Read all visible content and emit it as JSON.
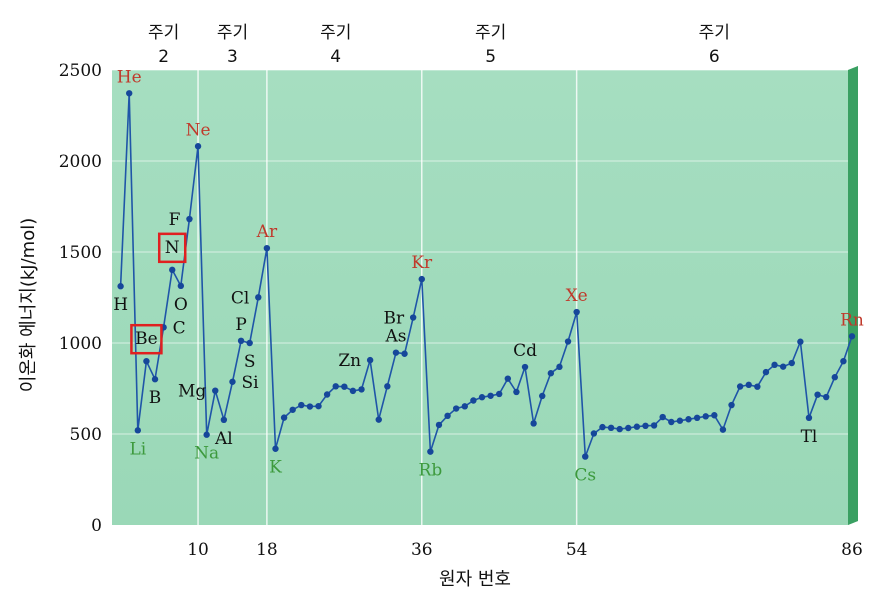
{
  "chart_data": {
    "type": "line",
    "xlabel": "원자 번호",
    "ylabel": "이온화 에너지(kJ/mol)",
    "xlim": [
      0,
      86
    ],
    "ylim": [
      0,
      2500
    ],
    "x_ticks": [
      10,
      18,
      36,
      54,
      86
    ],
    "y_ticks": [
      0,
      500,
      1000,
      1500,
      2000,
      2500
    ],
    "grid": true,
    "colors": {
      "background": "#9ad8b7",
      "line": "#1f55a8",
      "point": "#16479a",
      "noble_gas_label": "#c0392b",
      "alkali_label": "#3d9a3d",
      "other_label": "#111111",
      "highlight_box": "#e02020",
      "right_edge": "#3aa062"
    },
    "periods": [
      {
        "label": "주기",
        "number": "2",
        "x": 6
      },
      {
        "label": "주기",
        "number": "3",
        "x": 14
      },
      {
        "label": "주기",
        "number": "4",
        "x": 26
      },
      {
        "label": "주기",
        "number": "5",
        "x": 44
      },
      {
        "label": "주기",
        "number": "6",
        "x": 70
      }
    ],
    "series": [
      {
        "x": [
          1,
          2,
          3,
          4,
          5,
          6,
          7,
          8,
          9,
          10,
          11,
          12,
          13,
          14,
          15,
          16,
          17,
          18,
          19,
          20,
          21,
          22,
          23,
          24,
          25,
          26,
          27,
          28,
          29,
          30,
          31,
          32,
          33,
          34,
          35,
          36,
          37,
          38,
          39,
          40,
          41,
          42,
          43,
          44,
          45,
          46,
          47,
          48,
          49,
          50,
          51,
          52,
          53,
          54,
          55,
          56,
          57,
          58,
          59,
          60,
          61,
          62,
          63,
          64,
          65,
          66,
          67,
          68,
          69,
          70,
          71,
          72,
          73,
          74,
          75,
          76,
          77,
          78,
          79,
          80,
          81,
          82,
          83,
          84,
          85,
          86
        ],
        "values": [
          1312,
          2372,
          520,
          900,
          801,
          1086,
          1402,
          1314,
          1681,
          2081,
          496,
          738,
          578,
          787,
          1012,
          1000,
          1251,
          1521,
          419,
          590,
          633,
          659,
          651,
          653,
          717,
          762,
          760,
          737,
          745,
          906,
          579,
          762,
          947,
          941,
          1140,
          1351,
          403,
          550,
          600,
          640,
          652,
          684,
          702,
          710,
          720,
          804,
          731,
          868,
          558,
          709,
          834,
          869,
          1008,
          1170,
          376,
          503,
          538,
          534,
          527,
          533,
          540,
          545,
          547,
          593,
          566,
          573,
          581,
          589,
          597,
          603,
          524,
          659,
          761,
          770,
          760,
          840,
          880,
          870,
          890,
          1007,
          589,
          716,
          703,
          812,
          900,
          1037
        ]
      }
    ],
    "element_labels": [
      {
        "symbol": "H",
        "x": 1,
        "value": 1312,
        "group": "other",
        "pos": "below"
      },
      {
        "symbol": "He",
        "x": 2,
        "value": 2372,
        "group": "noble",
        "pos": "above"
      },
      {
        "symbol": "Li",
        "x": 3,
        "value": 520,
        "group": "alkali",
        "pos": "below"
      },
      {
        "symbol": "Be",
        "x": 4,
        "value": 900,
        "group": "other",
        "pos": "box-above"
      },
      {
        "symbol": "B",
        "x": 5,
        "value": 801,
        "group": "other",
        "pos": "below"
      },
      {
        "symbol": "C",
        "x": 6,
        "value": 1086,
        "group": "other",
        "pos": "right"
      },
      {
        "symbol": "N",
        "x": 7,
        "value": 1402,
        "group": "other",
        "pos": "box-above"
      },
      {
        "symbol": "O",
        "x": 8,
        "value": 1314,
        "group": "other",
        "pos": "below"
      },
      {
        "symbol": "F",
        "x": 9,
        "value": 1681,
        "group": "other",
        "pos": "left"
      },
      {
        "symbol": "Ne",
        "x": 10,
        "value": 2081,
        "group": "noble",
        "pos": "above"
      },
      {
        "symbol": "Na",
        "x": 11,
        "value": 496,
        "group": "alkali",
        "pos": "below"
      },
      {
        "symbol": "Mg",
        "x": 12,
        "value": 738,
        "group": "other",
        "pos": "left"
      },
      {
        "symbol": "Al",
        "x": 13,
        "value": 578,
        "group": "other",
        "pos": "below"
      },
      {
        "symbol": "Si",
        "x": 14,
        "value": 787,
        "group": "other",
        "pos": "right"
      },
      {
        "symbol": "P",
        "x": 15,
        "value": 1012,
        "group": "other",
        "pos": "above"
      },
      {
        "symbol": "S",
        "x": 16,
        "value": 1000,
        "group": "other",
        "pos": "below"
      },
      {
        "symbol": "Cl",
        "x": 17,
        "value": 1251,
        "group": "other",
        "pos": "left"
      },
      {
        "symbol": "Ar",
        "x": 18,
        "value": 1521,
        "group": "noble",
        "pos": "above"
      },
      {
        "symbol": "K",
        "x": 19,
        "value": 419,
        "group": "alkali",
        "pos": "below"
      },
      {
        "symbol": "Zn",
        "x": 30,
        "value": 906,
        "group": "other",
        "pos": "left"
      },
      {
        "symbol": "As",
        "x": 33,
        "value": 947,
        "group": "other",
        "pos": "above"
      },
      {
        "symbol": "Br",
        "x": 35,
        "value": 1140,
        "group": "other",
        "pos": "left"
      },
      {
        "symbol": "Kr",
        "x": 36,
        "value": 1351,
        "group": "noble",
        "pos": "above"
      },
      {
        "symbol": "Rb",
        "x": 37,
        "value": 403,
        "group": "alkali",
        "pos": "below"
      },
      {
        "symbol": "Cd",
        "x": 48,
        "value": 868,
        "group": "other",
        "pos": "above"
      },
      {
        "symbol": "Xe",
        "x": 54,
        "value": 1170,
        "group": "noble",
        "pos": "above"
      },
      {
        "symbol": "Cs",
        "x": 55,
        "value": 376,
        "group": "alkali",
        "pos": "below"
      },
      {
        "symbol": "Tl",
        "x": 81,
        "value": 589,
        "group": "other",
        "pos": "below"
      },
      {
        "symbol": "Rn",
        "x": 86,
        "value": 1037,
        "group": "noble",
        "pos": "above"
      }
    ]
  }
}
